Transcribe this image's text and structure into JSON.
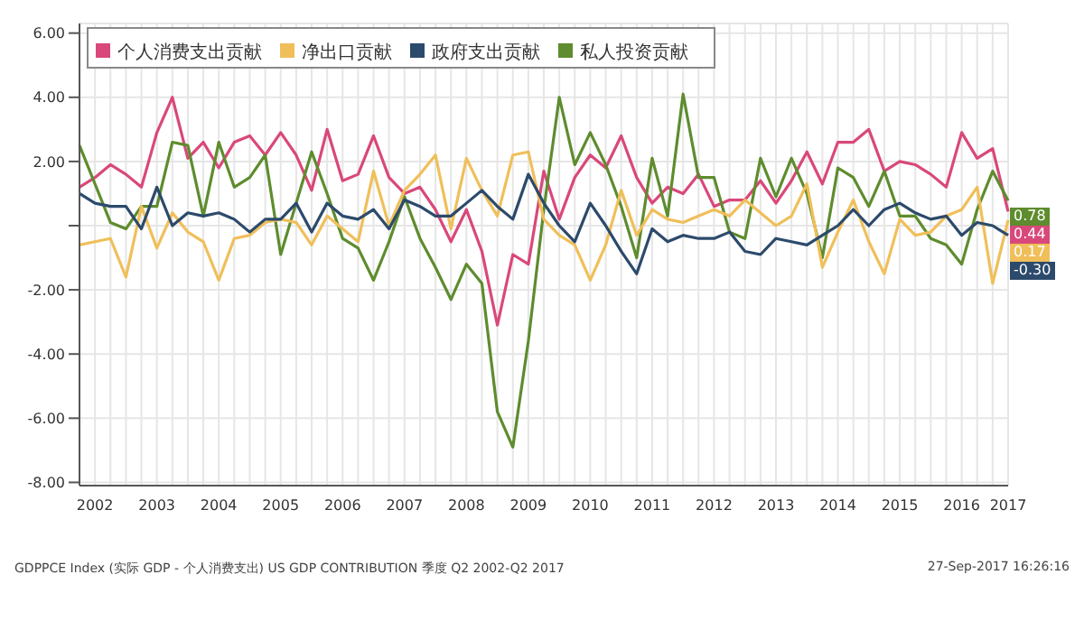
{
  "chart_data": {
    "type": "line",
    "categories": [
      null,
      "2002",
      null,
      null,
      null,
      "2003",
      null,
      null,
      null,
      "2004",
      null,
      null,
      null,
      "2005",
      null,
      null,
      null,
      "2006",
      null,
      null,
      null,
      "2007",
      null,
      null,
      null,
      "2008",
      null,
      null,
      null,
      "2009",
      null,
      null,
      null,
      "2010",
      null,
      null,
      null,
      "2011",
      null,
      null,
      null,
      "2012",
      null,
      null,
      null,
      "2013",
      null,
      null,
      null,
      "2014",
      null,
      null,
      null,
      "2015",
      null,
      null,
      null,
      "2016",
      null,
      null,
      "2017"
    ],
    "series": [
      {
        "name": "个人消费支出贡献",
        "color": "#d9487a",
        "values": [
          1.2,
          1.5,
          1.9,
          1.6,
          1.2,
          2.9,
          4.0,
          2.1,
          2.6,
          1.8,
          2.6,
          2.8,
          2.2,
          2.9,
          2.2,
          1.1,
          3.0,
          1.4,
          1.6,
          2.8,
          1.5,
          1.0,
          1.2,
          0.5,
          -0.5,
          0.5,
          -0.8,
          -3.1,
          -0.9,
          -1.2,
          1.7,
          0.2,
          1.5,
          2.2,
          1.8,
          2.8,
          1.5,
          0.7,
          1.2,
          1.0,
          1.6,
          0.6,
          0.8,
          0.8,
          1.4,
          0.7,
          1.4,
          2.3,
          1.3,
          2.6,
          2.6,
          3.0,
          1.7,
          2.0,
          1.9,
          1.6,
          1.2,
          2.9,
          2.1,
          2.4,
          0.44
        ],
        "value_labels": [
          null,
          null,
          null,
          null,
          null,
          null,
          null,
          null,
          null,
          null,
          null,
          null,
          null,
          null,
          null,
          null,
          null,
          null,
          null,
          null,
          null,
          null,
          null,
          null,
          null,
          null,
          null,
          null,
          null,
          null,
          null,
          null,
          null,
          null,
          null,
          null,
          null,
          null,
          null,
          null,
          null,
          null,
          null,
          null,
          null,
          null,
          null,
          null,
          null,
          null,
          null,
          null,
          null,
          null,
          null,
          null,
          null,
          null,
          null,
          null,
          "0.44"
        ]
      },
      {
        "name": "私人投资贡献",
        "color": "#5e8c2e",
        "values": [
          2.5,
          1.3,
          0.1,
          -0.1,
          0.6,
          0.6,
          2.6,
          2.5,
          0.3,
          2.6,
          1.2,
          1.5,
          2.2,
          -0.9,
          0.7,
          2.3,
          1.0,
          -0.4,
          -0.7,
          -1.7,
          -0.5,
          0.9,
          -0.4,
          -1.3,
          -2.3,
          -1.2,
          -1.8,
          -5.8,
          -6.9,
          -3.6,
          0.5,
          4.0,
          1.9,
          2.9,
          1.9,
          0.6,
          -1.0,
          2.1,
          0.3,
          4.1,
          1.5,
          1.5,
          -0.2,
          -0.4,
          2.1,
          0.9,
          2.1,
          1.0,
          -1.0,
          1.8,
          1.5,
          0.6,
          1.7,
          0.3,
          0.3,
          -0.4,
          -0.6,
          -1.2,
          0.5,
          1.7,
          0.78
        ],
        "value_labels": [
          null,
          null,
          null,
          null,
          null,
          null,
          null,
          null,
          null,
          null,
          null,
          null,
          null,
          null,
          null,
          null,
          null,
          null,
          null,
          null,
          null,
          null,
          null,
          null,
          null,
          null,
          null,
          null,
          null,
          null,
          null,
          null,
          null,
          null,
          null,
          null,
          null,
          null,
          null,
          null,
          null,
          null,
          null,
          null,
          null,
          null,
          null,
          null,
          null,
          null,
          null,
          null,
          null,
          null,
          null,
          null,
          null,
          null,
          null,
          null,
          "0.78"
        ]
      },
      {
        "name": "净出口贡献",
        "color": "#f0bf5a",
        "values": [
          -0.6,
          -0.5,
          -0.4,
          -1.6,
          0.6,
          -0.7,
          0.4,
          -0.2,
          -0.5,
          -1.7,
          -0.4,
          -0.3,
          0.1,
          0.2,
          0.1,
          -0.6,
          0.3,
          -0.1,
          -0.5,
          1.7,
          0.0,
          1.1,
          1.6,
          2.2,
          -0.1,
          2.1,
          1.1,
          0.3,
          2.2,
          2.3,
          0.2,
          -0.3,
          -0.6,
          -1.7,
          -0.6,
          1.1,
          -0.3,
          0.5,
          0.2,
          0.1,
          0.3,
          0.5,
          0.3,
          0.8,
          0.4,
          0.0,
          0.3,
          1.3,
          -1.3,
          -0.2,
          0.8,
          -0.5,
          -1.5,
          0.2,
          -0.3,
          -0.2,
          0.3,
          0.5,
          1.2,
          -1.8,
          0.17
        ],
        "value_labels": [
          null,
          null,
          null,
          null,
          null,
          null,
          null,
          null,
          null,
          null,
          null,
          null,
          null,
          null,
          null,
          null,
          null,
          null,
          null,
          null,
          null,
          null,
          null,
          null,
          null,
          null,
          null,
          null,
          null,
          null,
          null,
          null,
          null,
          null,
          null,
          null,
          null,
          null,
          null,
          null,
          null,
          null,
          null,
          null,
          null,
          null,
          null,
          null,
          null,
          null,
          null,
          null,
          null,
          null,
          null,
          null,
          null,
          null,
          null,
          null,
          "0.17"
        ]
      },
      {
        "name": "政府支出贡献",
        "color": "#2c4a6b",
        "values": [
          1.0,
          0.7,
          0.6,
          0.6,
          -0.1,
          1.2,
          0.0,
          0.4,
          0.3,
          0.4,
          0.2,
          -0.2,
          0.2,
          0.2,
          0.7,
          -0.2,
          0.7,
          0.3,
          0.2,
          0.5,
          -0.1,
          0.8,
          0.6,
          0.3,
          0.3,
          0.7,
          1.1,
          0.6,
          0.2,
          1.6,
          0.7,
          0.0,
          -0.5,
          0.7,
          0.0,
          -0.8,
          -1.5,
          -0.1,
          -0.5,
          -0.3,
          -0.4,
          -0.4,
          -0.2,
          -0.8,
          -0.9,
          -0.4,
          -0.5,
          -0.6,
          -0.3,
          0.0,
          0.5,
          0.0,
          0.5,
          0.7,
          0.4,
          0.2,
          0.3,
          -0.3,
          0.1,
          0.0,
          -0.3
        ],
        "value_labels": [
          null,
          null,
          null,
          null,
          null,
          null,
          null,
          null,
          null,
          null,
          null,
          null,
          null,
          null,
          null,
          null,
          null,
          null,
          null,
          null,
          null,
          null,
          null,
          null,
          null,
          null,
          null,
          null,
          null,
          null,
          null,
          null,
          null,
          null,
          null,
          null,
          null,
          null,
          null,
          null,
          null,
          null,
          null,
          null,
          null,
          null,
          null,
          null,
          null,
          null,
          null,
          null,
          null,
          null,
          null,
          null,
          null,
          null,
          null,
          null,
          "-0.30"
        ]
      }
    ],
    "ylim": [
      -8.1,
      6.3
    ],
    "yticks": [
      {
        "value": 6,
        "label": "6.00"
      },
      {
        "value": 4,
        "label": "4.00"
      },
      {
        "value": 2,
        "label": "2.00"
      },
      {
        "value": 0,
        "label": null
      },
      {
        "value": -2,
        "label": "-2.00"
      },
      {
        "value": -4,
        "label": "-4.00"
      },
      {
        "value": -6,
        "label": "-6.00"
      },
      {
        "value": -8,
        "label": "-8.00"
      }
    ],
    "grid": true,
    "legend": "top left",
    "marker": "none",
    "line_style": "solid",
    "annotations": [
      "GDPPCE Index (实际 GDP - 个人消费支出) US GDP CONTRIBUTION 季度 Q2 2002-Q2 2017",
      "27-Sep-2017 16:26:16"
    ]
  }
}
